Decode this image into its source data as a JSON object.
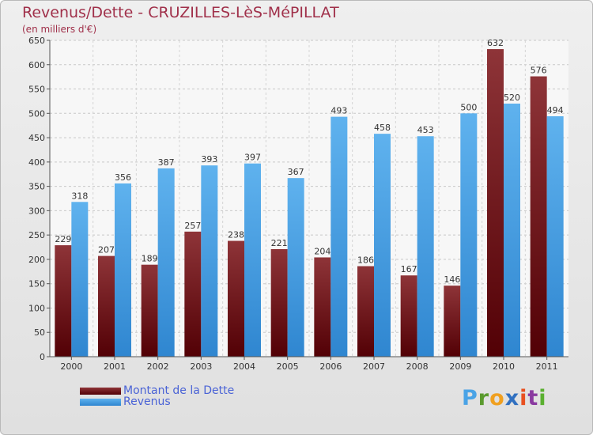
{
  "title": "Revenus/Dette - CRUZILLES-LèS-MéPILLAT",
  "subtitle": "(en milliers d'€)",
  "colors": {
    "dette": "#6b1015",
    "revenus": "#4aa3e6",
    "title": "#a0304a",
    "legend_text": "#4a63d6"
  },
  "logo": {
    "letters": [
      "P",
      "r",
      "o",
      "x",
      "i",
      "t",
      "i"
    ],
    "colors": [
      "#4aa3e6",
      "#5a9a2e",
      "#f0a020",
      "#3070c0",
      "#e85020",
      "#8a3aa0",
      "#5ab030"
    ]
  },
  "chart_data": {
    "type": "bar",
    "categories": [
      "2000",
      "2001",
      "2002",
      "2003",
      "2004",
      "2005",
      "2006",
      "2007",
      "2008",
      "2009",
      "2010",
      "2011"
    ],
    "series": [
      {
        "name": "Montant de la Dette",
        "values": [
          229,
          207,
          189,
          257,
          238,
          221,
          204,
          186,
          167,
          146,
          632,
          576
        ]
      },
      {
        "name": "Revenus",
        "values": [
          318,
          356,
          387,
          393,
          397,
          367,
          493,
          458,
          453,
          500,
          520,
          494
        ]
      }
    ],
    "yticks": [
      "0",
      "50",
      "100",
      "150",
      "200",
      "250",
      "300",
      "350",
      "400",
      "450",
      "500",
      "550",
      "600",
      "650"
    ],
    "ylim": [
      0,
      650
    ],
    "grid": true,
    "legend_position": "bottom-left"
  }
}
